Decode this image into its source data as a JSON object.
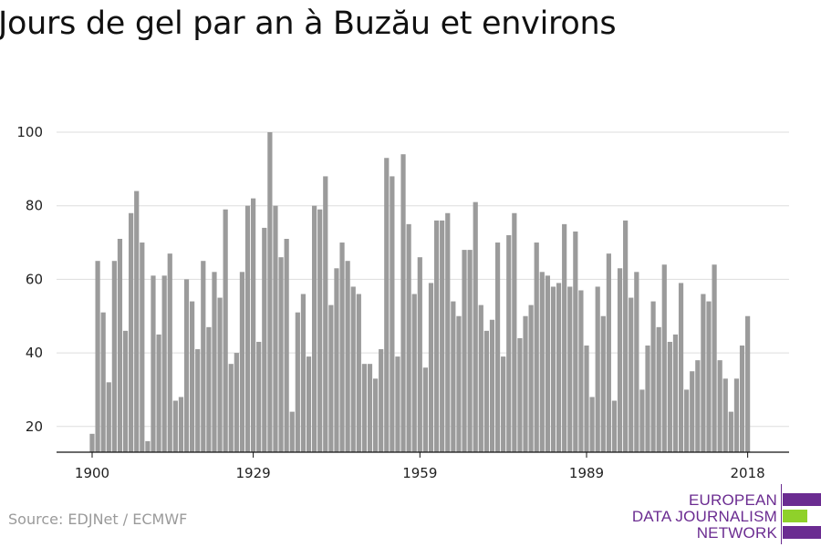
{
  "chart_data": {
    "type": "bar",
    "title": "Jours de gel par an à Buzău et environs",
    "source": "Source: EDJNet / ECMWF",
    "x": [
      1900,
      1901,
      1902,
      1903,
      1904,
      1905,
      1906,
      1907,
      1908,
      1909,
      1910,
      1911,
      1912,
      1913,
      1914,
      1915,
      1916,
      1917,
      1918,
      1919,
      1920,
      1921,
      1922,
      1923,
      1924,
      1925,
      1926,
      1927,
      1928,
      1929,
      1930,
      1931,
      1932,
      1933,
      1934,
      1935,
      1936,
      1937,
      1938,
      1939,
      1940,
      1941,
      1942,
      1943,
      1944,
      1945,
      1946,
      1947,
      1948,
      1949,
      1950,
      1951,
      1952,
      1953,
      1954,
      1955,
      1956,
      1957,
      1958,
      1959,
      1960,
      1961,
      1962,
      1963,
      1964,
      1965,
      1966,
      1967,
      1968,
      1969,
      1970,
      1971,
      1972,
      1973,
      1974,
      1975,
      1976,
      1977,
      1978,
      1979,
      1980,
      1981,
      1982,
      1983,
      1984,
      1985,
      1986,
      1987,
      1988,
      1989,
      1990,
      1991,
      1992,
      1993,
      1994,
      1995,
      1996,
      1997,
      1998,
      1999,
      2000,
      2001,
      2002,
      2003,
      2004,
      2005,
      2006,
      2007,
      2008,
      2009,
      2010,
      2011,
      2012,
      2013,
      2014,
      2015,
      2016,
      2017,
      2018
    ],
    "values": [
      18,
      65,
      51,
      32,
      65,
      71,
      46,
      78,
      84,
      70,
      16,
      61,
      45,
      61,
      67,
      27,
      28,
      60,
      54,
      41,
      65,
      47,
      62,
      55,
      79,
      37,
      40,
      62,
      80,
      82,
      43,
      74,
      100,
      80,
      66,
      71,
      24,
      51,
      56,
      39,
      80,
      79,
      88,
      53,
      63,
      70,
      65,
      58,
      56,
      37,
      37,
      33,
      41,
      93,
      88,
      39,
      94,
      75,
      56,
      66,
      36,
      59,
      76,
      76,
      78,
      54,
      50,
      68,
      68,
      81,
      53,
      46,
      49,
      70,
      39,
      72,
      78,
      44,
      50,
      53,
      70,
      62,
      61,
      58,
      59,
      75,
      58,
      73,
      57,
      42,
      28,
      58,
      50,
      67,
      27,
      63,
      76,
      55,
      62,
      30,
      42,
      54,
      47,
      64,
      43,
      45,
      59,
      30,
      35,
      38,
      56,
      54,
      64,
      38,
      33,
      24,
      33,
      42,
      50
    ],
    "xticks": [
      "1900",
      "1929",
      "1959",
      "1989",
      "2018"
    ],
    "xtick_years": [
      1900,
      1929,
      1959,
      1989,
      2018
    ],
    "yticks": [
      "20",
      "40",
      "60",
      "80",
      "100"
    ],
    "ytick_values": [
      20,
      40,
      60,
      80,
      100
    ],
    "ylim": [
      13,
      100
    ],
    "grid": true,
    "colors": {
      "bar": "#9b9b9b",
      "grid": "#dddddd",
      "axis": "#111111"
    }
  },
  "logo": {
    "lines": [
      "EUROPEAN",
      "DATA JOURNALISM",
      "NETWORK"
    ],
    "colors": {
      "purple": "#6b2c91",
      "green": "#8fd12a"
    }
  }
}
